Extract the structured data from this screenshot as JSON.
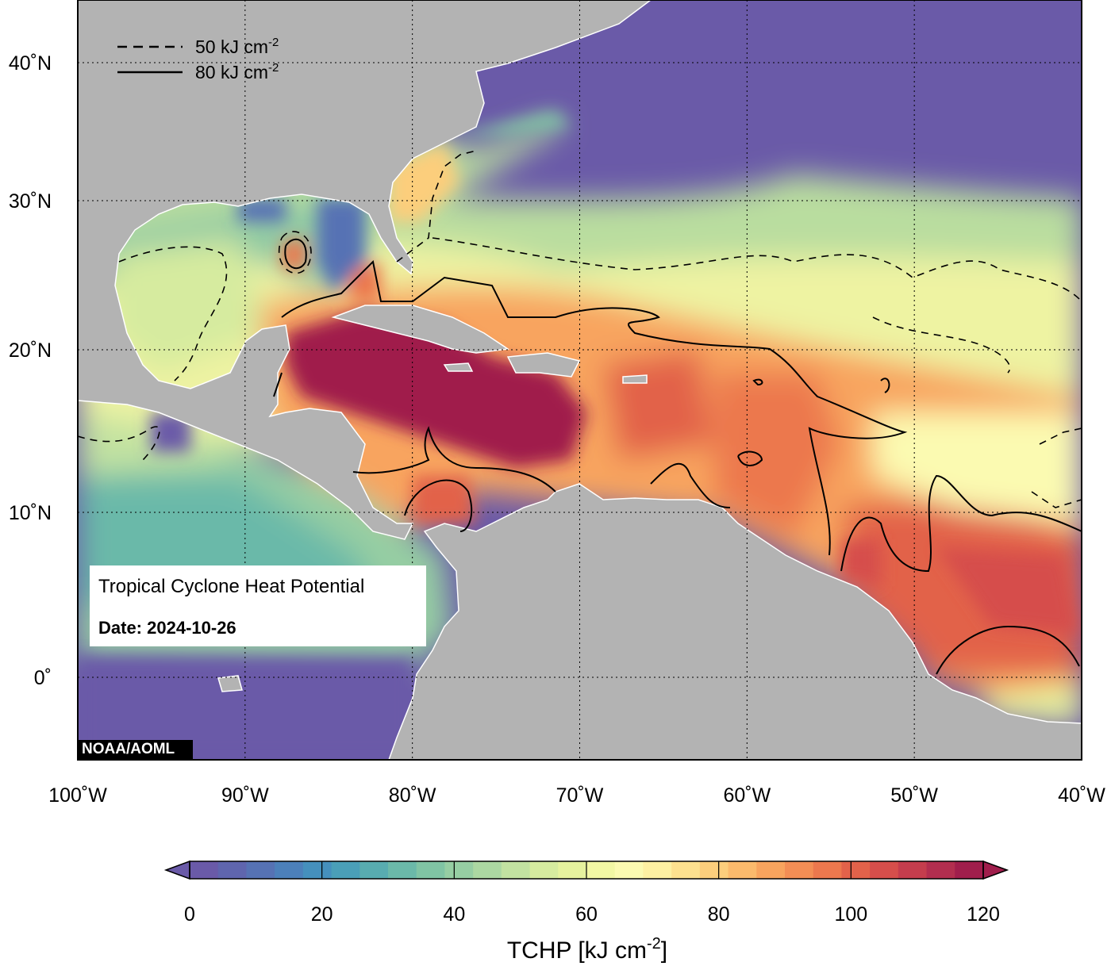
{
  "map": {
    "lon_labels": [
      "100˚W",
      "90˚W",
      "80˚W",
      "70˚W",
      "60˚W",
      "50˚W",
      "40˚W"
    ],
    "lat_labels": [
      "40˚N",
      "30˚N",
      "20˚N",
      "10˚N",
      "0˚"
    ],
    "lon_range": [
      -100,
      -40
    ],
    "lat_range": [
      -6,
      44
    ],
    "land_color": "#b3b3b3",
    "coast_color": "#ffffff"
  },
  "legend": {
    "dashed_label": "50 kJ cm",
    "dashed_sup": "-2",
    "solid_label": "80 kJ cm",
    "solid_sup": "-2"
  },
  "info": {
    "title": "Tropical Cyclone Heat Potential",
    "date": "Date: 2024-10-26"
  },
  "credit": "NOAA/AOML",
  "colorbar": {
    "title": "TCHP [kJ cm",
    "title_sup": "-2",
    "title_end": "]",
    "ticks": [
      "0",
      "20",
      "40",
      "60",
      "80",
      "100",
      "120"
    ],
    "min": 0,
    "max": 120,
    "colors": [
      "#6a5aa8",
      "#5f65ae",
      "#5672b4",
      "#4c80ba",
      "#4590bd",
      "#4a9fb8",
      "#58acb0",
      "#6bb9a9",
      "#80c4a4",
      "#96cea3",
      "#acd8a2",
      "#c2e2a1",
      "#d6eb9f",
      "#e6f29e",
      "#f2f7a4",
      "#fbfab1",
      "#fdf0a2",
      "#fde18f",
      "#fcce7c",
      "#fbba6c",
      "#f8a45e",
      "#f38e55",
      "#ec784e",
      "#e2624a",
      "#d64e4b",
      "#c53d4d",
      "#b22e4f",
      "#a01e4c"
    ]
  }
}
